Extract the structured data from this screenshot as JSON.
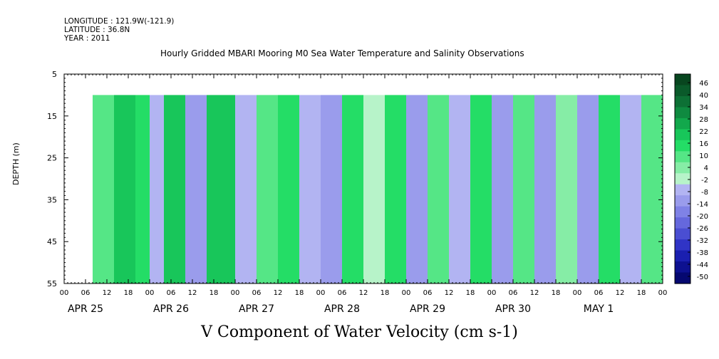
{
  "header": {
    "longitude": "LONGITUDE : 121.9W(-121.9)",
    "latitude": "LATITUDE : 36.8N",
    "year": "YEAR : 2011"
  },
  "chart_data": {
    "type": "heatmap",
    "title": "Hourly Gridded MBARI Mooring M0 Sea Water Temperature and Salinity Observations",
    "xlabel": "V Component of Water Velocity (cm s-1)",
    "ylabel": "DEPTH (m)",
    "y_ticks": [
      "5",
      "15",
      "25",
      "35",
      "45",
      "55"
    ],
    "ylim": [
      5,
      55
    ],
    "y_reversed": true,
    "data_depth_range": [
      10,
      55
    ],
    "x_hour_ticks": [
      "00",
      "06",
      "12",
      "18",
      "00",
      "06",
      "12",
      "18",
      "00",
      "06",
      "12",
      "18",
      "00",
      "06",
      "12",
      "18",
      "00",
      "06",
      "12",
      "18",
      "00",
      "06",
      "12",
      "18",
      "00",
      "06",
      "12",
      "18",
      "00"
    ],
    "x_day_labels": [
      "APR 25",
      "APR 26",
      "APR 27",
      "APR 28",
      "APR 29",
      "APR 30",
      "MAY  1"
    ],
    "x_data_start": "APR 25 08:00",
    "colorbar_ticks": [
      "46",
      "40",
      "34",
      "28",
      "22",
      "16",
      "10",
      "4",
      "-2",
      "-8",
      "-14",
      "-20",
      "-26",
      "-32",
      "-38",
      "-44",
      "-50"
    ],
    "colorbar_colors": [
      "#08461f",
      "#0a5a2a",
      "#0d7035",
      "#0f8a40",
      "#12a84c",
      "#18c65a",
      "#24dd66",
      "#55e686",
      "#86eda6",
      "#b7f3c9",
      "#b2b4f2",
      "#9a9cec",
      "#7f82e6",
      "#6568dd",
      "#4a4ed2",
      "#3034c6",
      "#1a1fb0",
      "#0d1190",
      "#050870"
    ],
    "bands_v_cm_s": [
      {
        "time": "APR 25 08:00",
        "v": 8
      },
      {
        "time": "APR 25 14:00",
        "v": 18
      },
      {
        "time": "APR 25 20:00",
        "v": 12
      },
      {
        "time": "APR 26 00:00",
        "v": -6
      },
      {
        "time": "APR 26 04:00",
        "v": 20
      },
      {
        "time": "APR 26 10:00",
        "v": -10
      },
      {
        "time": "APR 26 16:00",
        "v": 22
      },
      {
        "time": "APR 27 00:00",
        "v": -8
      },
      {
        "time": "APR 27 06:00",
        "v": 10
      },
      {
        "time": "APR 27 12:00",
        "v": 14
      },
      {
        "time": "APR 27 18:00",
        "v": -6
      },
      {
        "time": "APR 28 00:00",
        "v": -14
      },
      {
        "time": "APR 28 06:00",
        "v": 12
      },
      {
        "time": "APR 28 12:00",
        "v": -4
      },
      {
        "time": "APR 28 18:00",
        "v": 14
      },
      {
        "time": "APR 29 00:00",
        "v": -10
      },
      {
        "time": "APR 29 06:00",
        "v": 8
      },
      {
        "time": "APR 29 12:00",
        "v": -8
      },
      {
        "time": "APR 29 18:00",
        "v": 16
      },
      {
        "time": "APR 30 00:00",
        "v": -12
      },
      {
        "time": "APR 30 06:00",
        "v": 10
      },
      {
        "time": "APR 30 12:00",
        "v": -14
      },
      {
        "time": "APR 30 18:00",
        "v": 6
      },
      {
        "time": "MAY 1 00:00",
        "v": -10
      },
      {
        "time": "MAY 1 06:00",
        "v": 12
      },
      {
        "time": "MAY 1 12:00",
        "v": -6
      },
      {
        "time": "MAY 1 18:00",
        "v": 8
      }
    ]
  }
}
